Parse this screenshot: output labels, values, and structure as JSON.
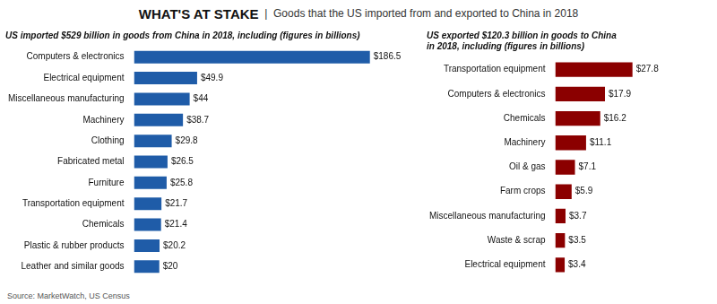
{
  "title": "WHAT'S AT STAKE",
  "subtitle": "  |  Goods that the US imported from and exported to China in 2018",
  "annotations": [
    "Source: MarketWatch, US Census"
  ],
  "chart_data": [
    {
      "type": "bar",
      "orientation": "horizontal",
      "title": "US imported $529 billion in goods from China in 2018, including (figures in billions)",
      "categories": [
        "Computers & electronics",
        "Electrical equipment",
        "Miscellaneous manufacturing",
        "Machinery",
        "Clothing",
        "Fabricated metal",
        "Furniture",
        "Transportation equipment",
        "Chemicals",
        "Plastic & rubber products",
        "Leather and similar goods"
      ],
      "values": [
        186.5,
        49.9,
        44.0,
        38.7,
        29.8,
        26.5,
        25.8,
        21.7,
        21.4,
        20.2,
        20.0
      ],
      "value_labels": [
        "$186.5",
        "$49.9",
        "$44",
        "$38.7",
        "$29.8",
        "$26.5",
        "$25.8",
        "$21.7",
        "$21.4",
        "$20.2",
        "$20"
      ],
      "color": "#1F5CA8",
      "xlim": [
        0,
        220
      ],
      "grid": false,
      "data_labels": true,
      "tick_labels": "y"
    },
    {
      "type": "bar",
      "orientation": "horizontal",
      "title": "US exported $120.3 billion in goods to China\nin 2018, including (figures in billions)",
      "categories": [
        "Transportation equipment",
        "Computers & electronics",
        "Chemicals",
        "Machinery",
        "Oil & gas",
        "Farm crops",
        "Miscellaneous manufacturing",
        "Waste & scrap",
        "Electrical equipment"
      ],
      "values": [
        27.8,
        17.9,
        16.2,
        11.1,
        7.1,
        5.9,
        3.7,
        3.5,
        3.4
      ],
      "value_labels": [
        "$27.8",
        "$17.9",
        "$16.2",
        "$11.1",
        "$7.1",
        "$5.9",
        "$3.7",
        "$3.5",
        "$3.4"
      ],
      "color": "#8B0000",
      "xlim": [
        0,
        55
      ],
      "grid": false,
      "data_labels": true,
      "tick_labels": "y"
    }
  ]
}
